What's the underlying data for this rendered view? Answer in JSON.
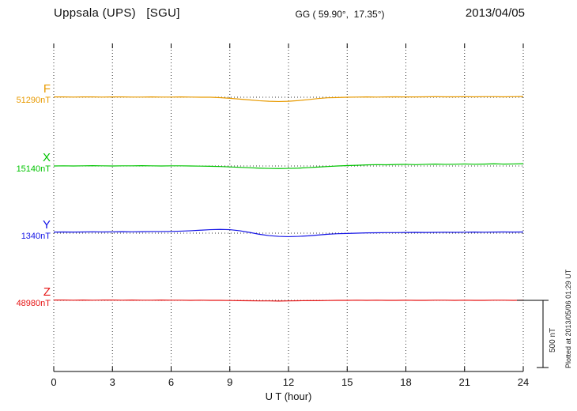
{
  "header": {
    "station_title": "Uppsala (UPS)   [SGU]",
    "coordinates": "GG ( 59.90°,  17.35°)",
    "date": "2013/04/05"
  },
  "footer": {
    "plotted_at": "Plotted at 2013/05/06 01:29 UT"
  },
  "chart_data": {
    "type": "line",
    "title": "Uppsala (UPS) [SGU] magnetogram 2013/04/05",
    "xlabel": "U T (hour)",
    "x_unit": "hour",
    "xlim": [
      0,
      24
    ],
    "x_ticks": [
      0,
      3,
      6,
      9,
      12,
      15,
      18,
      21,
      24
    ],
    "x_step_hours": 0.5,
    "grid": "dotted vertical at 3h intervals, dotted horizontal baselines",
    "scalebar": {
      "label": "500 nT",
      "span_nT": 500
    },
    "series": [
      {
        "name": "F",
        "baseline_label": "51290nT",
        "baseline_nT": 51290,
        "color": "#e89a00",
        "offsets_nT": [
          2,
          2,
          1,
          2,
          2,
          1,
          2,
          2,
          1,
          1,
          2,
          1,
          1,
          2,
          1,
          0,
          0,
          -3,
          -8,
          -14,
          -20,
          -26,
          -30,
          -32,
          -30,
          -25,
          -18,
          -10,
          -4,
          -2,
          0,
          1,
          2,
          1,
          2,
          3,
          2,
          2,
          3,
          4,
          3,
          3,
          4,
          3,
          4,
          4,
          3,
          4,
          5
        ]
      },
      {
        "name": "X",
        "baseline_label": "15140nT",
        "baseline_nT": 15140,
        "color": "#00c400",
        "offsets_nT": [
          0,
          1,
          0,
          1,
          2,
          1,
          0,
          1,
          1,
          2,
          1,
          0,
          1,
          1,
          0,
          -1,
          -2,
          -4,
          -7,
          -10,
          -13,
          -16,
          -18,
          -19,
          -18,
          -16,
          -12,
          -8,
          -4,
          0,
          3,
          5,
          8,
          10,
          9,
          11,
          12,
          10,
          12,
          14,
          12,
          13,
          15,
          13,
          14,
          16,
          14,
          15,
          17
        ]
      },
      {
        "name": "Y",
        "baseline_label": "1340nT",
        "baseline_nT": 1340,
        "color": "#1414e6",
        "offsets_nT": [
          8,
          9,
          8,
          9,
          10,
          9,
          10,
          11,
          10,
          11,
          12,
          12,
          13,
          15,
          18,
          22,
          26,
          28,
          26,
          18,
          6,
          -8,
          -18,
          -24,
          -26,
          -24,
          -20,
          -14,
          -8,
          -4,
          -2,
          0,
          2,
          3,
          4,
          4,
          5,
          6,
          5,
          6,
          7,
          6,
          7,
          8,
          7,
          8,
          9,
          8,
          9
        ]
      },
      {
        "name": "Z",
        "baseline_label": "48980nT",
        "baseline_nT": 48980,
        "color": "#e61414",
        "offsets_nT": [
          2,
          2,
          1,
          2,
          1,
          2,
          2,
          1,
          2,
          1,
          1,
          2,
          1,
          1,
          0,
          1,
          0,
          0,
          -1,
          -2,
          -3,
          -4,
          -4,
          -5,
          -4,
          -3,
          -2,
          -2,
          -1,
          0,
          0,
          1,
          0,
          1,
          0,
          0,
          1,
          0,
          0,
          1,
          1,
          0,
          1,
          0,
          0,
          1,
          1,
          0,
          1
        ]
      }
    ]
  }
}
